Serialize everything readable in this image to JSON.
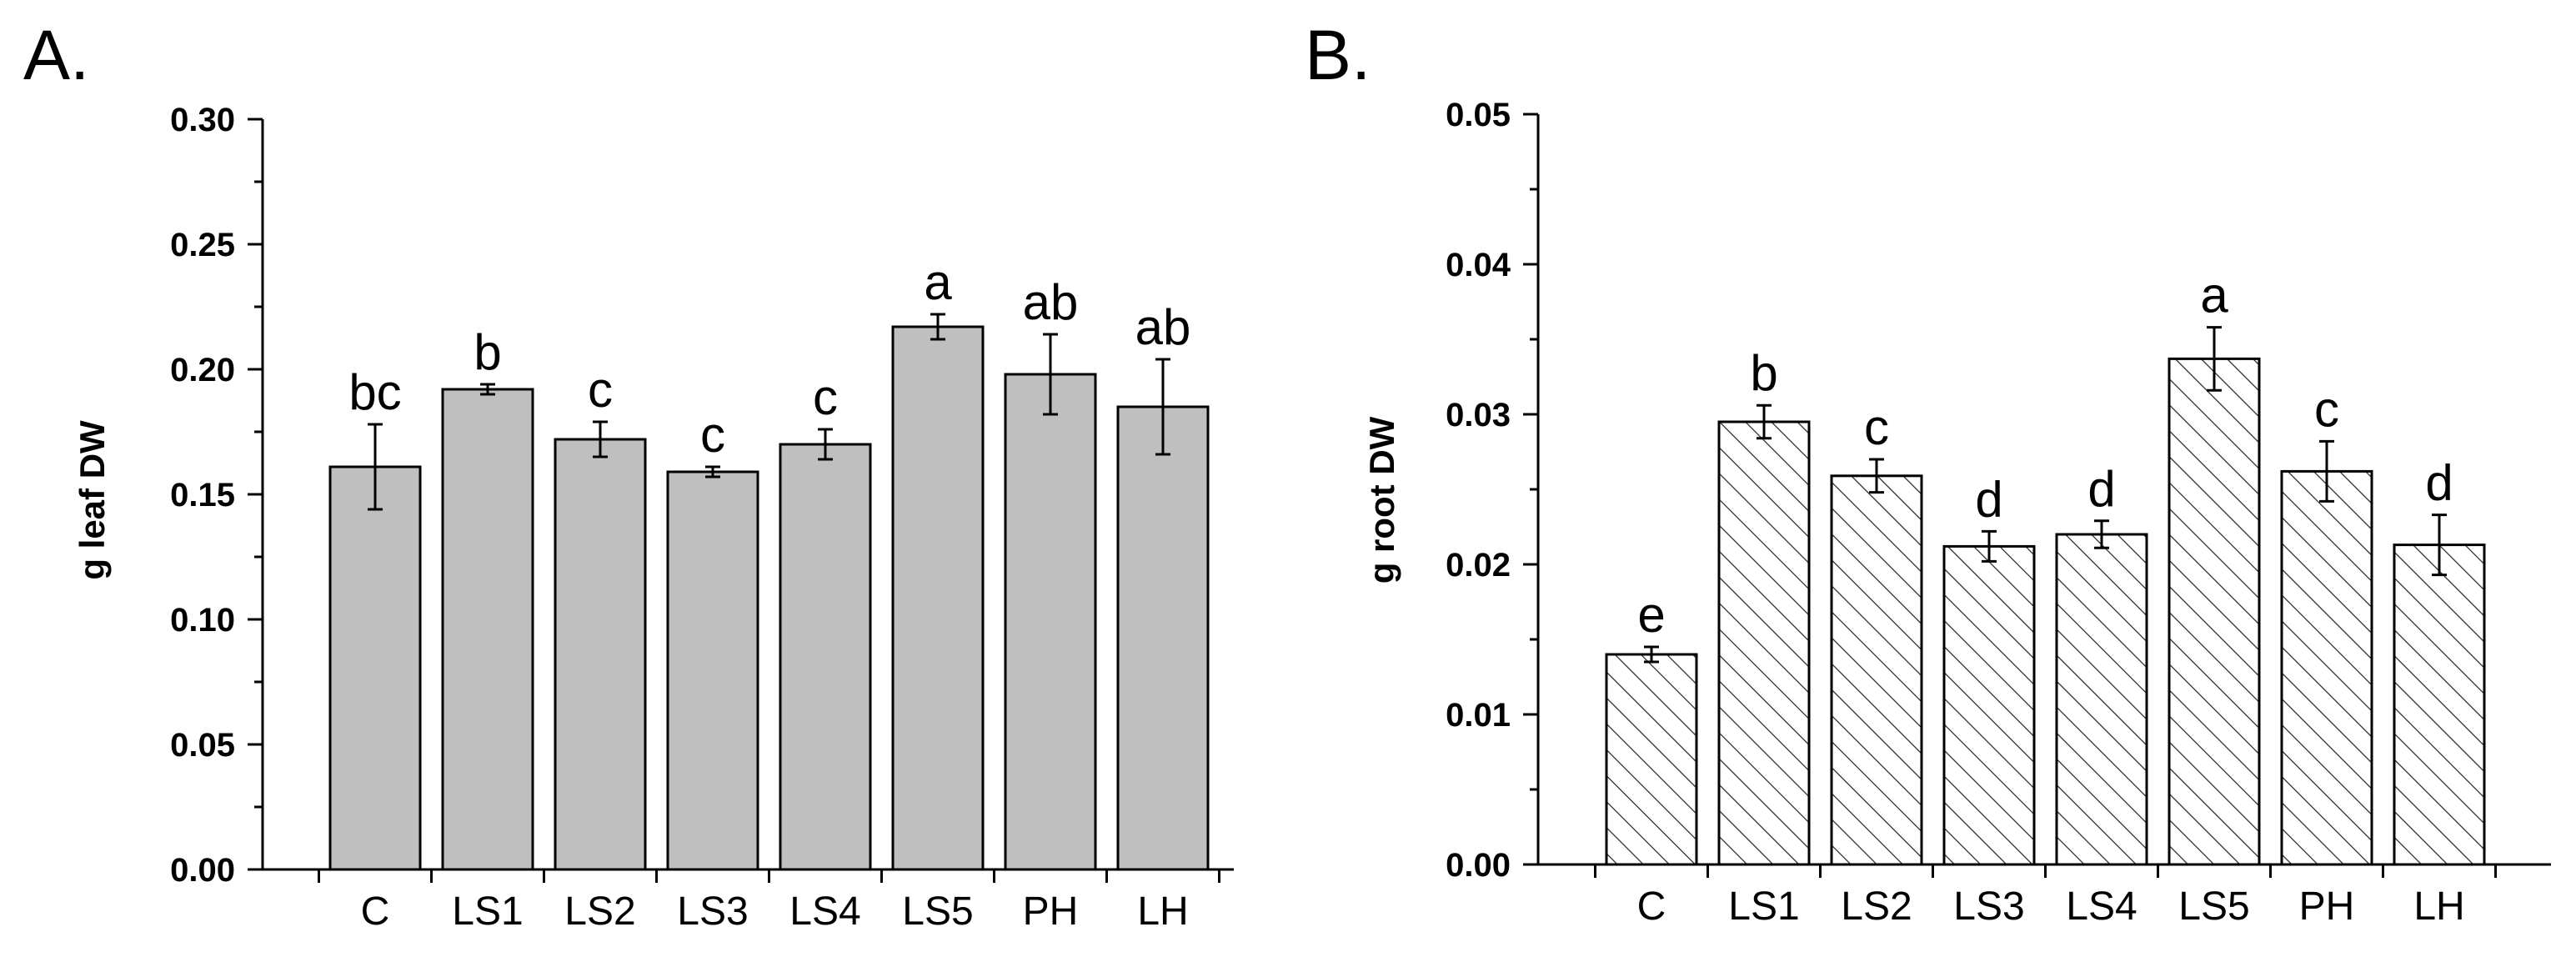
{
  "chart_data": [
    {
      "type": "bar",
      "panel_label": "A.",
      "ylabel": "g leaf DW",
      "xlabel": "",
      "ylim": [
        0,
        0.3
      ],
      "yticks": [
        "0.00",
        "0.05",
        "0.10",
        "0.15",
        "0.20",
        "0.25",
        "0.30"
      ],
      "fill": "#bfbfbf",
      "pattern": "solid",
      "categories": [
        "C",
        "LS1",
        "LS2",
        "LS3",
        "LS4",
        "LS5",
        "PH",
        "LH"
      ],
      "values": [
        0.161,
        0.192,
        0.172,
        0.159,
        0.17,
        0.217,
        0.198,
        0.185
      ],
      "errors": [
        0.017,
        0.002,
        0.007,
        0.002,
        0.006,
        0.005,
        0.016,
        0.019
      ],
      "significance": [
        "bc",
        "b",
        "c",
        "c",
        "c",
        "a",
        "ab",
        "ab"
      ]
    },
    {
      "type": "bar",
      "panel_label": "B.",
      "ylabel": "g root DW",
      "xlabel": "",
      "ylim": [
        0,
        0.05
      ],
      "yticks": [
        "0.00",
        "0.01",
        "0.02",
        "0.03",
        "0.04",
        "0.05"
      ],
      "fill": "#ffffff",
      "pattern": "hatch",
      "categories": [
        "C",
        "LS1",
        "LS2",
        "LS3",
        "LS4",
        "LS5",
        "PH",
        "LH"
      ],
      "values": [
        0.014,
        0.0295,
        0.0259,
        0.0212,
        0.022,
        0.0337,
        0.0262,
        0.0213
      ],
      "errors": [
        0.0005,
        0.0011,
        0.0011,
        0.001,
        0.0009,
        0.0021,
        0.002,
        0.002
      ],
      "significance": [
        "e",
        "b",
        "c",
        "d",
        "d",
        "a",
        "c",
        "d"
      ]
    }
  ]
}
